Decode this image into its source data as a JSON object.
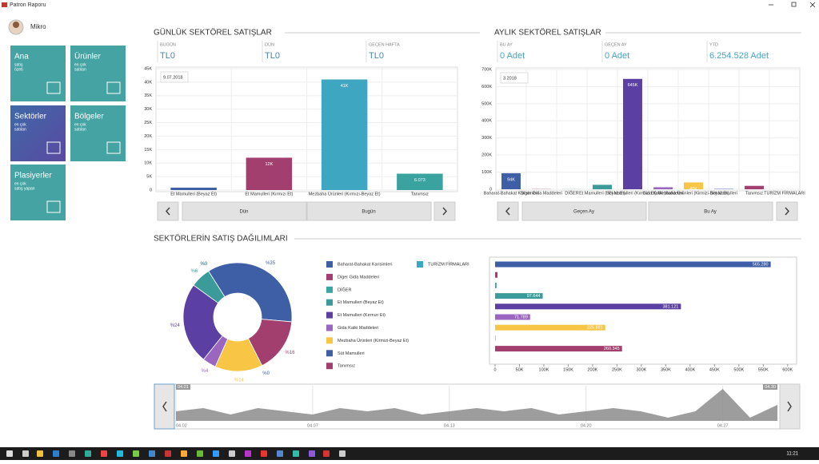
{
  "window": {
    "title": "Patron Raporu"
  },
  "user": {
    "name": "Mikro"
  },
  "tiles": [
    {
      "title": "Ana",
      "lines": [
        "satış",
        "özeti"
      ]
    },
    {
      "title": "Ürünler",
      "lines": [
        "en çok",
        "satılan"
      ]
    },
    {
      "title": "Sektörler",
      "lines": [
        "en çok",
        "satılan"
      ]
    },
    {
      "title": "Bölgeler",
      "lines": [
        "en çok",
        "satılan"
      ]
    },
    {
      "title": "Plasiyerler",
      "lines": [
        "en çok",
        "satış yapan"
      ]
    }
  ],
  "daily": {
    "heading": "GÜNLÜK SEKTÖREL SATIŞLAR",
    "kpis": [
      {
        "label": "BUGÜN",
        "value": "TL0"
      },
      {
        "label": "DÜN",
        "value": "TL0"
      },
      {
        "label": "GEÇEN HAFTA",
        "value": "TL0"
      }
    ],
    "buttons": [
      "Dün",
      "Bugün"
    ]
  },
  "monthly": {
    "heading": "AYLIK SEKTÖREL SATIŞLAR",
    "kpis": [
      {
        "label": "BU AY",
        "value": "0 Adet"
      },
      {
        "label": "GEÇEN AY",
        "value": "0 Adet"
      },
      {
        "label": "YTD",
        "value": "6.254.528 Adet"
      }
    ],
    "buttons": [
      "Geçen Ay",
      "Bu Ay"
    ]
  },
  "distribution": {
    "heading": "SEKTÖRLERİN SATIŞ DAĞILIMLARI"
  },
  "taskbar": {
    "time": "11:21"
  },
  "chart_data": [
    {
      "type": "bar",
      "annotation": "9.07.2018",
      "categories": [
        "Et Mamulleri (Beyaz Et)",
        "Et Mamulleri (Kırmızı Et)",
        "Mezbaha Ürünleri (Kırmızı-Beyaz Et)",
        "Tanımsız"
      ],
      "colors": [
        "#3e5ea6",
        "#a23f6e",
        "#3fa6c1",
        "#3aa39f"
      ],
      "values": [
        900,
        12000,
        41000,
        6073
      ],
      "value_labels": [
        null,
        "12K",
        "41K",
        "6.073"
      ],
      "ylim": [
        0,
        45000
      ],
      "yticks": [
        0,
        {
          "value": 5000,
          "label": "5K"
        },
        {
          "value": 10000,
          "label": "10K"
        },
        {
          "value": 15000,
          "label": "15K"
        },
        {
          "value": 20000,
          "label": "20K"
        },
        {
          "value": 25000,
          "label": "25K"
        },
        {
          "value": 30000,
          "label": "30K"
        },
        {
          "value": 35000,
          "label": "35K"
        },
        {
          "value": 40000,
          "label": "40K"
        },
        {
          "value": 45000,
          "label": "45K"
        }
      ],
      "grid": true
    },
    {
      "type": "bar",
      "annotation": "3.2018",
      "categories": [
        "Baharat-Bahakat Karisimleri",
        "Diger Gida Maddeleri",
        "DİĞER",
        "Et Mamulleri (Beyaz Et)",
        "Et Mamulleri (Kırmızı Et)",
        "Gida Katki Maddeleri",
        "Mezbaha Ürünleri (Kirmizi-Beyaz Et)",
        "Süt Mamulleri",
        "Tanımsız",
        "TURİZM FİRMALARI"
      ],
      "colors": [
        "#3e5ea6",
        "#a23f6e",
        "#39a6a6",
        "#3b9b9b",
        "#5b3fa2",
        "#9a66c0",
        "#f8c544",
        "#3e5ea6",
        "#a23f6e",
        "#3aa7c2"
      ],
      "values": [
        94000,
        1000,
        500,
        26000,
        645000,
        12000,
        40000,
        2000,
        20000,
        0
      ],
      "value_labels": [
        "94K",
        null,
        null,
        null,
        "645K",
        null,
        "40K",
        null,
        null,
        null
      ],
      "ylim": [
        0,
        700000
      ],
      "yticks": [
        0,
        {
          "value": 100000,
          "label": "100K"
        },
        {
          "value": 200000,
          "label": "200K"
        },
        {
          "value": 300000,
          "label": "300K"
        },
        {
          "value": 400000,
          "label": "400K"
        },
        {
          "value": 500000,
          "label": "500K"
        },
        {
          "value": 600000,
          "label": "600K"
        },
        {
          "value": 700000,
          "label": "700K"
        }
      ],
      "grid": true
    },
    {
      "type": "pie",
      "donut": true,
      "categories": [
        "Baharat-Bahakat Karisimleri",
        "Diger Gida Maddeleri",
        "DİĞER",
        "Et Mamulleri (Beyaz Et)",
        "Et Mamulleri (Kırmızı Et)",
        "Gida Katki Maddeleri",
        "Mezbaha Ürünleri (Kirmizi-Beyaz Et)",
        "Süt Mamulleri",
        "Tanımsız",
        "TURİZM FİRMALARI"
      ],
      "colors": [
        "#3e5ea6",
        "#a23f6e",
        "#39a6a6",
        "#3b9b9b",
        "#5b3fa2",
        "#9a66c0",
        "#f8c544",
        "#3e5ea6",
        "#a23f6e",
        "#3aa7c2"
      ],
      "values": [
        35,
        0,
        0,
        6,
        24,
        4,
        14,
        0,
        16,
        0
      ],
      "value_labels": [
        "%35",
        "%0",
        "%0",
        "%6",
        "%24",
        "%4",
        "%14",
        "%0",
        "%16",
        null
      ]
    },
    {
      "type": "hbar",
      "colors": [
        "#3e5ea6",
        "#a23f6e",
        "#39a6a6",
        "#3b9b9b",
        "#5b3fa2",
        "#9a66c0",
        "#f8c544",
        "#3e5ea6",
        "#a23f6e"
      ],
      "values": [
        565280,
        5000,
        3000,
        97644,
        381121,
        71789,
        225881,
        500,
        260345
      ],
      "value_labels": [
        "565.280",
        null,
        null,
        "97.644",
        "381.121",
        "71.789",
        "225.881",
        null,
        "260.345"
      ],
      "xlim": [
        0,
        620000
      ],
      "xticks": [
        0,
        {
          "value": 50000,
          "label": "50K"
        },
        {
          "value": 100000,
          "label": "100K"
        },
        {
          "value": 150000,
          "label": "150K"
        },
        {
          "value": 200000,
          "label": "200K"
        },
        {
          "value": 250000,
          "label": "250K"
        },
        {
          "value": 300000,
          "label": "300K"
        },
        {
          "value": 350000,
          "label": "350K"
        },
        {
          "value": 400000,
          "label": "400K"
        },
        {
          "value": 450000,
          "label": "450K"
        },
        {
          "value": 500000,
          "label": "500K"
        },
        {
          "value": 550000,
          "label": "550K"
        },
        {
          "value": 600000,
          "label": "600K"
        }
      ]
    },
    {
      "type": "area",
      "color": "#8c8c8c",
      "values": [
        3,
        4,
        2,
        4,
        3,
        2,
        4,
        3,
        4,
        2,
        3,
        4,
        3,
        4,
        2,
        3,
        4,
        3,
        1,
        3,
        10,
        1,
        5
      ],
      "ylim": [
        0,
        10
      ],
      "xlim": [
        0,
        22
      ],
      "xticks": [
        {
          "value": 0,
          "label": "04.02"
        },
        {
          "value": 5,
          "label": "04.07"
        },
        {
          "value": 10,
          "label": "04.13"
        },
        {
          "value": 15,
          "label": "04.20"
        },
        {
          "value": 20,
          "label": "04.27"
        }
      ],
      "range_labels": [
        "04.01",
        "04.30"
      ]
    }
  ]
}
